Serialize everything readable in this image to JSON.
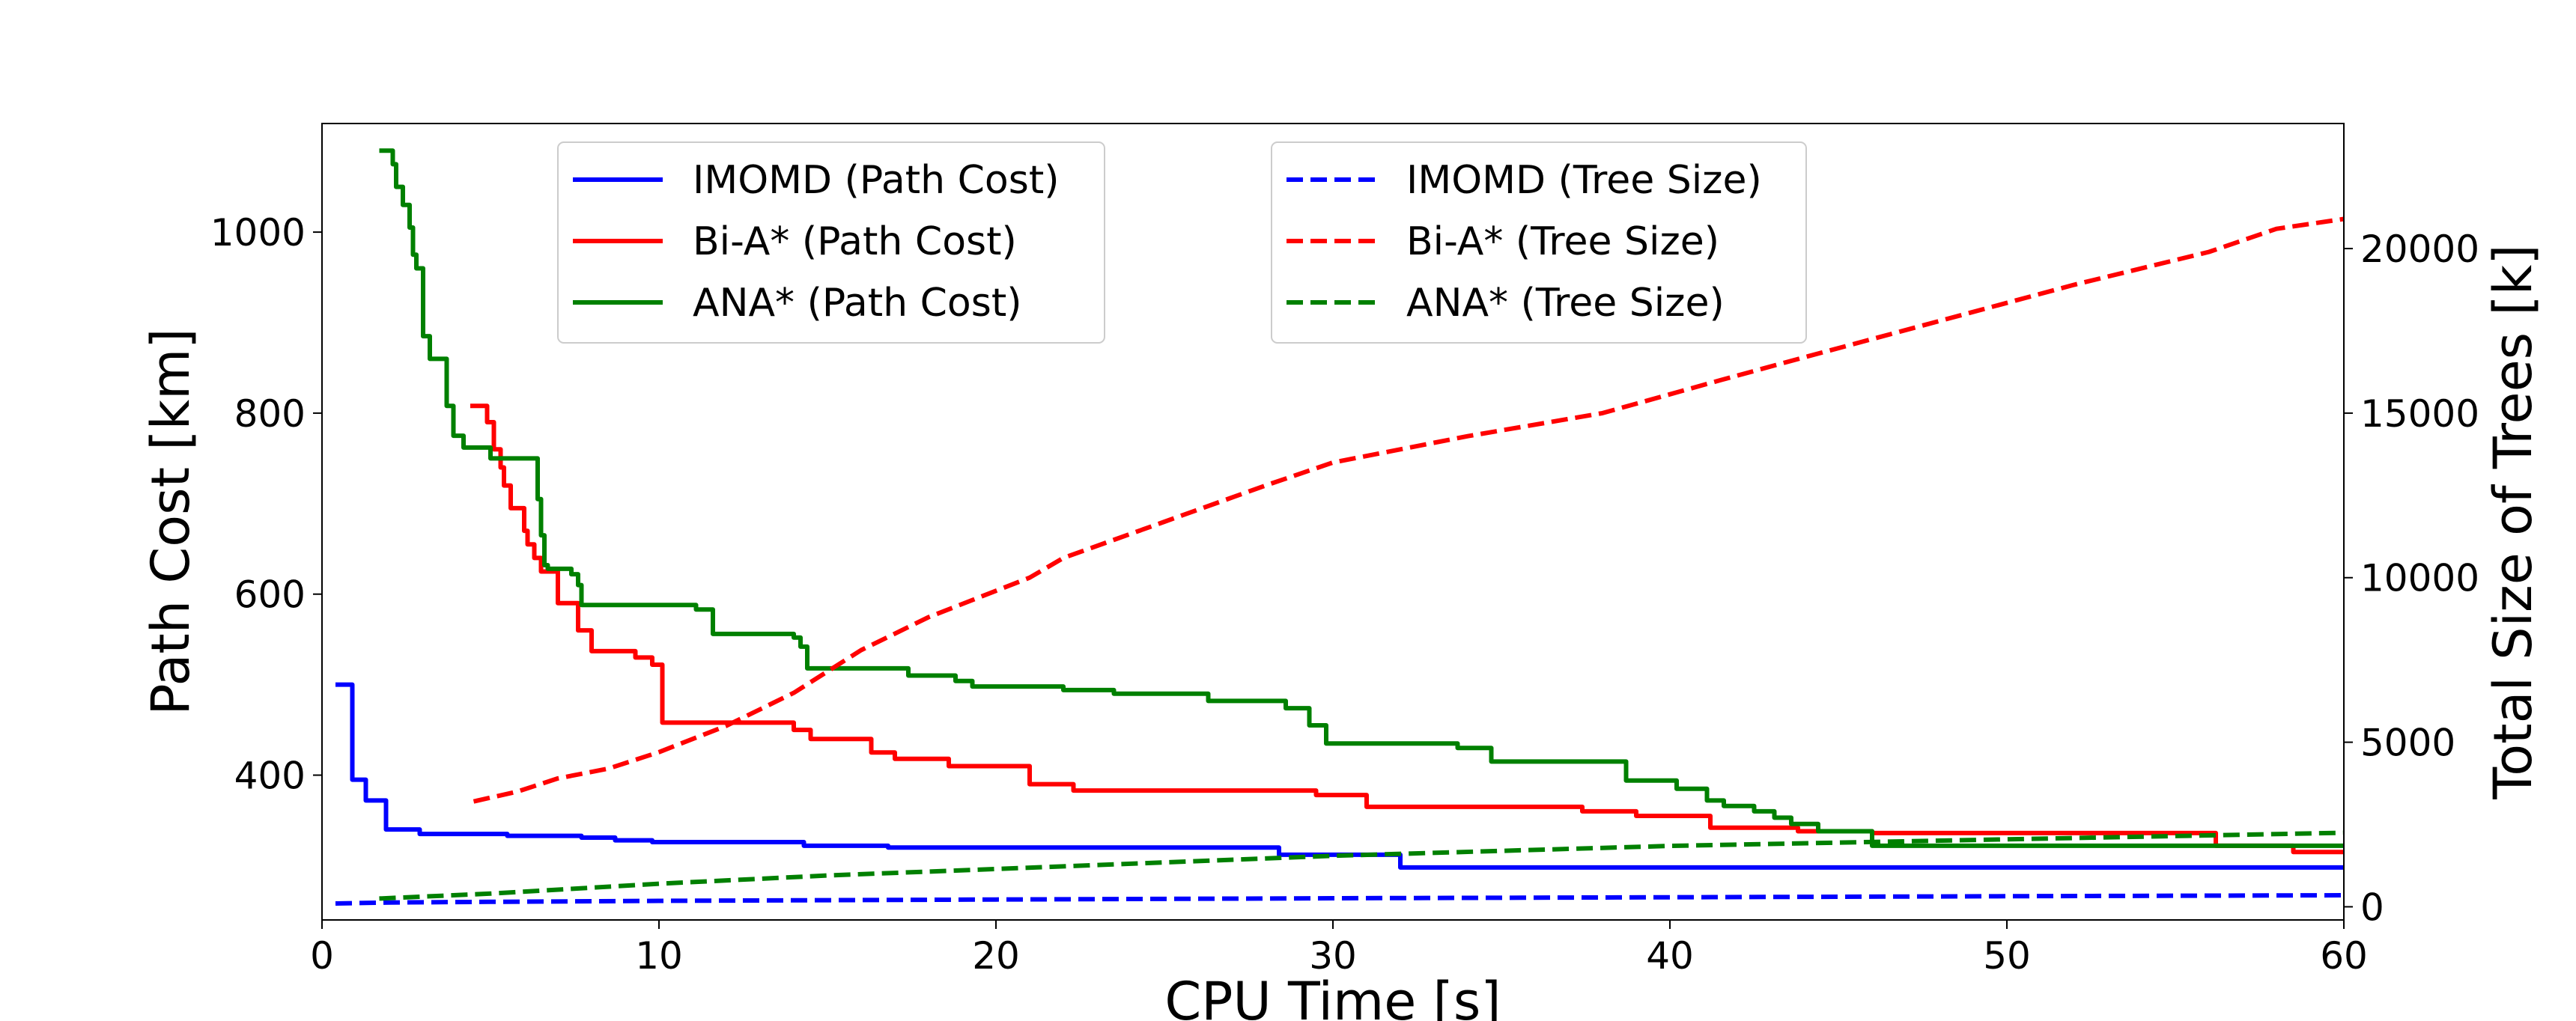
{
  "chart_data": {
    "type": "line",
    "xlabel": "CPU Time [s]",
    "ylabel_left": "Path Cost [km]",
    "ylabel_right": "Total Size of Trees [k]",
    "xlim": [
      0,
      60
    ],
    "ylim_left": [
      240,
      1120
    ],
    "ylim_right": [
      -400,
      23800
    ],
    "xticks": [
      0,
      10,
      20,
      30,
      40,
      50,
      60
    ],
    "yticks_left": [
      400,
      600,
      800,
      1000
    ],
    "yticks_right": [
      0,
      5000,
      10000,
      15000,
      20000
    ],
    "grid": false,
    "colors": {
      "imomd": "#0000ff",
      "bia": "#ff0000",
      "ana": "#008000"
    },
    "legend_left_placement": "upper-center-left",
    "legend_right_placement": "upper-center",
    "series": [
      {
        "name": "IMOMD (Path Cost)",
        "axis": "left",
        "style": "solid",
        "color": "#0000ff",
        "x": [
          0.4,
          0.9,
          0.9,
          1.3,
          1.3,
          1.9,
          1.9,
          2.9,
          2.9,
          5.5,
          5.5,
          6.5,
          6.5,
          7.7,
          7.7,
          8.7,
          8.7,
          9.8,
          9.8,
          14.3,
          14.3,
          16.8,
          16.8,
          28.4,
          28.4,
          32.0,
          32.0,
          60.0
        ],
        "y": [
          500,
          500,
          395,
          395,
          372,
          372,
          340,
          340,
          335,
          335,
          333,
          333,
          333,
          333,
          331,
          331,
          328,
          328,
          326,
          326,
          322,
          322,
          320,
          320,
          312,
          312,
          298,
          298
        ]
      },
      {
        "name": "Bi-A* (Path Cost)",
        "axis": "left",
        "style": "solid",
        "color": "#ff0000",
        "x": [
          4.4,
          4.9,
          4.9,
          5.1,
          5.1,
          5.3,
          5.3,
          5.4,
          5.4,
          5.6,
          5.6,
          6.0,
          6.0,
          6.1,
          6.1,
          6.3,
          6.3,
          6.5,
          6.5,
          7.0,
          7.0,
          7.6,
          7.6,
          7.8,
          7.8,
          8.0,
          8.0,
          9.3,
          9.3,
          9.8,
          9.8,
          10.1,
          10.1,
          14.0,
          14.0,
          14.5,
          14.5,
          16.3,
          16.3,
          17.0,
          17.0,
          18.6,
          18.6,
          21.0,
          21.0,
          22.3,
          22.3,
          29.5,
          29.5,
          31.0,
          31.0,
          37.4,
          37.4,
          39.0,
          39.0,
          41.2,
          41.2,
          43.8,
          43.8,
          46.0,
          46.0,
          56.2,
          56.2,
          58.5,
          58.5,
          60.0
        ],
        "y": [
          808,
          808,
          790,
          790,
          760,
          760,
          740,
          740,
          720,
          720,
          695,
          695,
          670,
          670,
          655,
          655,
          640,
          640,
          625,
          625,
          590,
          590,
          560,
          560,
          560,
          560,
          537,
          537,
          530,
          530,
          522,
          522,
          458,
          458,
          450,
          450,
          440,
          440,
          425,
          425,
          418,
          418,
          410,
          410,
          390,
          390,
          383,
          383,
          378,
          378,
          365,
          365,
          360,
          360,
          355,
          355,
          342,
          342,
          338,
          338,
          336,
          336,
          322,
          322,
          315,
          315
        ]
      },
      {
        "name": "ANA* (Path Cost)",
        "axis": "left",
        "style": "solid",
        "color": "#008000",
        "x": [
          1.7,
          2.1,
          2.1,
          2.2,
          2.2,
          2.4,
          2.4,
          2.6,
          2.6,
          2.7,
          2.7,
          2.8,
          2.8,
          3.0,
          3.0,
          3.2,
          3.2,
          3.4,
          3.4,
          3.7,
          3.7,
          3.9,
          3.9,
          4.2,
          4.2,
          5.0,
          5.0,
          6.4,
          6.4,
          6.5,
          6.5,
          6.6,
          6.6,
          6.7,
          6.7,
          7.4,
          7.4,
          7.6,
          7.6,
          7.7,
          7.7,
          8.0,
          8.0,
          11.1,
          11.1,
          11.6,
          11.6,
          14.0,
          14.0,
          14.2,
          14.2,
          14.4,
          14.4,
          17.4,
          17.4,
          18.8,
          18.8,
          19.3,
          19.3,
          22.0,
          22.0,
          23.5,
          23.5,
          26.3,
          26.3,
          28.6,
          28.6,
          29.3,
          29.3,
          29.8,
          29.8,
          33.7,
          33.7,
          34.7,
          34.7,
          38.7,
          38.7,
          40.2,
          40.2,
          41.1,
          41.1,
          41.6,
          41.6,
          42.5,
          42.5,
          43.1,
          43.1,
          43.6,
          43.6,
          44.4,
          44.4,
          46.0,
          46.0,
          60.0
        ],
        "y": [
          1090,
          1090,
          1075,
          1075,
          1050,
          1050,
          1030,
          1030,
          1005,
          1005,
          975,
          975,
          960,
          960,
          885,
          885,
          860,
          860,
          860,
          860,
          808,
          808,
          775,
          775,
          762,
          762,
          750,
          750,
          705,
          705,
          665,
          665,
          632,
          632,
          628,
          628,
          622,
          622,
          610,
          610,
          588,
          588,
          588,
          588,
          583,
          583,
          556,
          556,
          552,
          552,
          542,
          542,
          518,
          518,
          510,
          510,
          504,
          504,
          498,
          498,
          494,
          494,
          490,
          490,
          482,
          482,
          474,
          474,
          455,
          455,
          435,
          435,
          430,
          430,
          415,
          415,
          394,
          394,
          385,
          385,
          372,
          372,
          366,
          366,
          360,
          360,
          353,
          353,
          346,
          346,
          338,
          338,
          322,
          322
        ]
      },
      {
        "name": "IMOMD (Tree Size)",
        "axis": "right",
        "style": "dashed",
        "color": "#0000ff",
        "x": [
          0.4,
          2.0,
          5.0,
          10.0,
          20.0,
          30.0,
          40.0,
          50.0,
          60.0
        ],
        "y": [
          100,
          130,
          150,
          180,
          220,
          260,
          290,
          320,
          350
        ]
      },
      {
        "name": "Bi-A* (Tree Size)",
        "axis": "right",
        "style": "dashed",
        "color": "#ff0000",
        "x": [
          4.5,
          5.8,
          7.0,
          8.5,
          10.0,
          12.0,
          14.0,
          16.0,
          18.0,
          20.0,
          21.0,
          22.0,
          25.0,
          28.0,
          30.0,
          34.0,
          38.0,
          41.5,
          44.0,
          48.0,
          52.0,
          56.0,
          58.0,
          60.0
        ],
        "y": [
          3200,
          3500,
          3900,
          4200,
          4700,
          5500,
          6500,
          7800,
          8800,
          9600,
          10000,
          10600,
          11700,
          12800,
          13500,
          14300,
          15000,
          16000,
          16700,
          17800,
          18900,
          19900,
          20600,
          20900
        ]
      },
      {
        "name": "ANA* (Tree Size)",
        "axis": "right",
        "style": "dashed",
        "color": "#008000",
        "x": [
          1.7,
          5.0,
          10.0,
          15.0,
          20.0,
          25.0,
          30.0,
          35.0,
          40.0,
          45.0,
          50.0,
          55.0,
          60.0
        ],
        "y": [
          250,
          400,
          700,
          950,
          1150,
          1350,
          1550,
          1700,
          1850,
          1950,
          2050,
          2150,
          2250
        ]
      }
    ]
  }
}
